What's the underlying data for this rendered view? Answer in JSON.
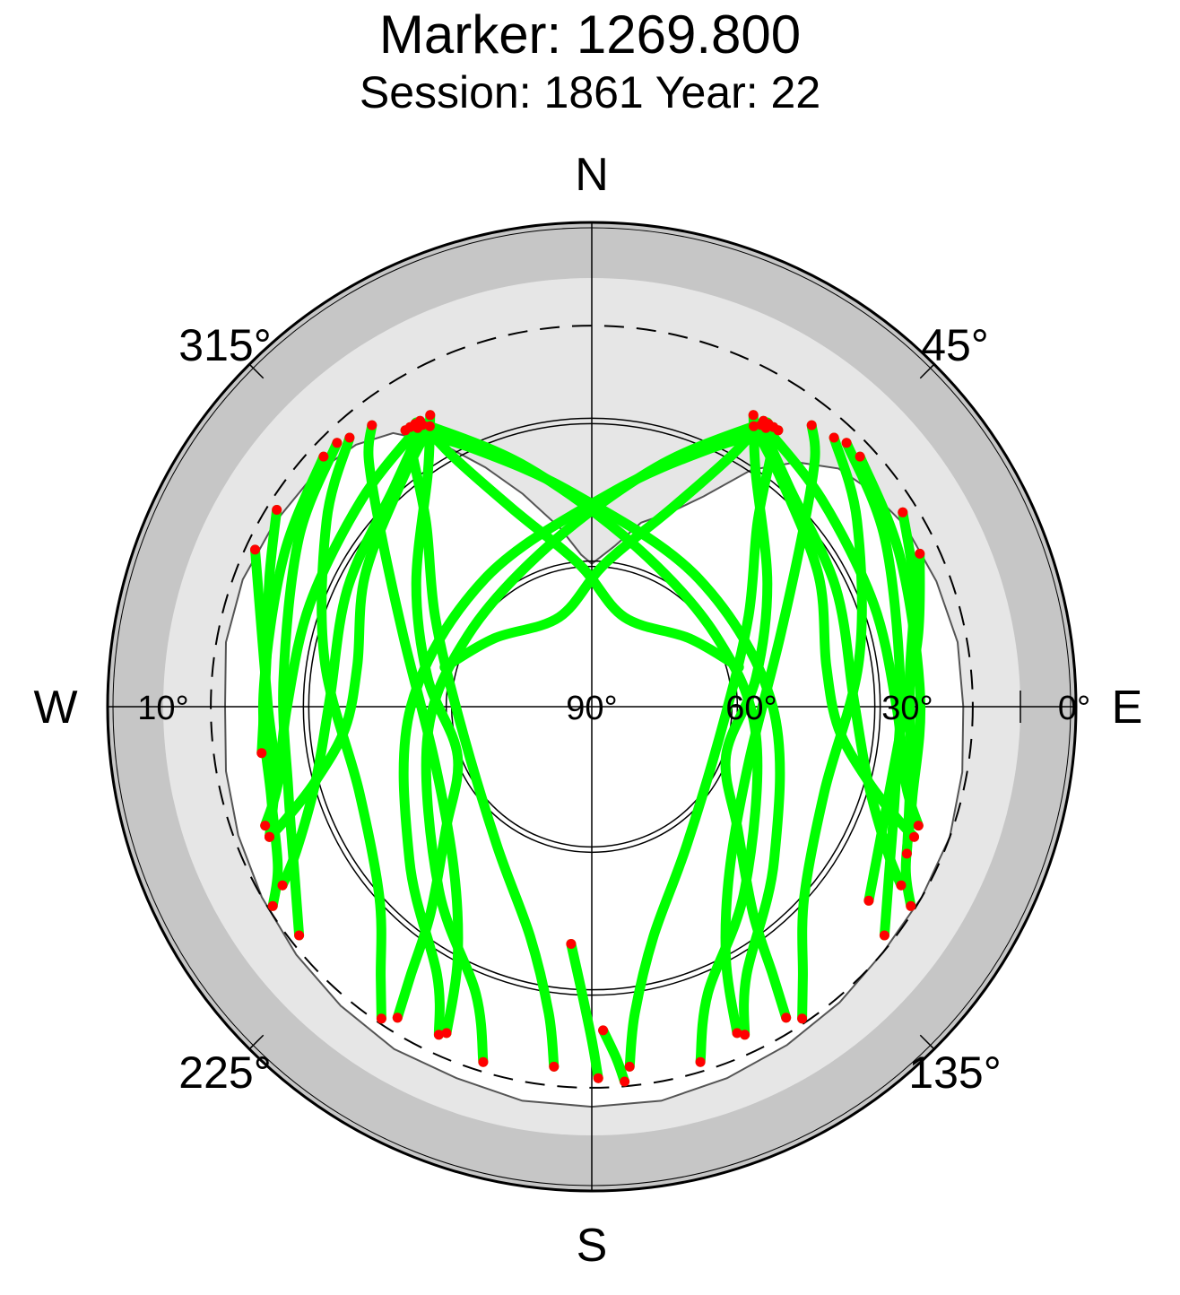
{
  "title": "Marker: 1269.800",
  "subtitle": "Session: 1861 Year: 22",
  "compass": {
    "north": "N",
    "south": "S",
    "east": "E",
    "west": "W"
  },
  "azimuth_labels": [
    {
      "az": 45,
      "text": "45°"
    },
    {
      "az": 135,
      "text": "135°"
    },
    {
      "az": 225,
      "text": "225°"
    },
    {
      "az": 315,
      "text": "315°"
    }
  ],
  "elevation_labels": [
    {
      "el": 0,
      "text": "0°"
    },
    {
      "el": 10,
      "text": "10°"
    },
    {
      "el": 30,
      "text": "30°"
    },
    {
      "el": 60,
      "text": "60°"
    },
    {
      "el": 90,
      "text": "90°"
    }
  ],
  "colors": {
    "background": "#ffffff",
    "outer_ring": "#c6c6c6",
    "masked_zone": "#e6e6e6",
    "grid": "#000000",
    "horizon_line": "#555555",
    "track": "#00ff00",
    "track_end": "#ff0000"
  },
  "chart_data": {
    "type": "scatter",
    "projection": "polar sky plot (azimuth clockwise from N, elevation 90° at center)",
    "title": "Marker: 1269.800",
    "subtitle": "Session: 1861 Year: 22",
    "elevation_range": [
      0,
      90
    ],
    "elevation_circles": [
      0,
      10,
      30,
      60
    ],
    "cutoff_elevation_dashed": 10,
    "grid": true,
    "series": [
      {
        "role": "satellite-tracks",
        "color": "#00ff00"
      },
      {
        "role": "track-endpoints",
        "color": "#ff0000"
      }
    ],
    "tracks": [
      [
        [
          329,
          20
        ],
        [
          331,
          30
        ],
        [
          338,
          45
        ],
        [
          355,
          60
        ],
        [
          20,
          70
        ],
        [
          55,
          65
        ],
        [
          75,
          58
        ]
      ],
      [
        [
          330,
          22
        ],
        [
          320,
          28
        ],
        [
          300,
          35
        ],
        [
          280,
          40
        ],
        [
          265,
          38
        ],
        [
          255,
          30
        ],
        [
          250,
          22
        ],
        [
          248,
          17
        ]
      ],
      [
        [
          331,
          20
        ],
        [
          325,
          30
        ],
        [
          305,
          45
        ],
        [
          280,
          55
        ],
        [
          250,
          60
        ],
        [
          230,
          50
        ],
        [
          218,
          35
        ],
        [
          214,
          22
        ],
        [
          212,
          13
        ]
      ],
      [
        [
          329,
          21
        ],
        [
          318,
          28
        ],
        [
          296,
          33
        ],
        [
          272,
          35
        ],
        [
          255,
          30
        ],
        [
          244,
          21
        ],
        [
          240,
          15
        ]
      ],
      [
        [
          328,
          21
        ],
        [
          312,
          25
        ],
        [
          290,
          27
        ],
        [
          270,
          26
        ],
        [
          256,
          22
        ],
        [
          250,
          17
        ]
      ],
      [
        [
          328,
          20
        ],
        [
          330,
          22
        ],
        [
          345,
          38
        ],
        [
          15,
          55
        ],
        [
          60,
          60
        ],
        [
          100,
          55
        ],
        [
          140,
          40
        ],
        [
          158,
          25
        ],
        [
          163,
          12
        ]
      ],
      [
        [
          327,
          20
        ],
        [
          325,
          24
        ],
        [
          318,
          38
        ],
        [
          300,
          52
        ],
        [
          265,
          62
        ],
        [
          215,
          55
        ],
        [
          195,
          40
        ],
        [
          188,
          25
        ],
        [
          186,
          14
        ]
      ],
      [
        [
          326,
          20
        ],
        [
          335,
          30
        ],
        [
          355,
          45
        ],
        [
          40,
          55
        ],
        [
          90,
          52
        ],
        [
          130,
          40
        ],
        [
          150,
          25
        ],
        [
          155,
          14
        ]
      ],
      [
        [
          322,
          15
        ],
        [
          318,
          20
        ],
        [
          310,
          32
        ],
        [
          290,
          48
        ],
        [
          250,
          55
        ],
        [
          220,
          45
        ],
        [
          208,
          30
        ],
        [
          204,
          15
        ]
      ],
      [
        [
          318,
          14
        ],
        [
          305,
          22
        ],
        [
          280,
          33
        ],
        [
          250,
          38
        ],
        [
          228,
          30
        ],
        [
          218,
          18
        ],
        [
          214,
          11
        ]
      ],
      [
        [
          316,
          13
        ],
        [
          300,
          19
        ],
        [
          275,
          25
        ],
        [
          255,
          24
        ],
        [
          240,
          18
        ],
        [
          232,
          12
        ]
      ],
      [
        [
          313,
          13
        ],
        [
          296,
          18
        ],
        [
          272,
          21
        ],
        [
          254,
          20
        ],
        [
          243,
          16
        ],
        [
          238,
          11
        ]
      ],
      [
        [
          31,
          20
        ],
        [
          29,
          30
        ],
        [
          22,
          45
        ],
        [
          5,
          60
        ],
        [
          340,
          70
        ],
        [
          305,
          65
        ],
        [
          285,
          58
        ]
      ],
      [
        [
          30,
          22
        ],
        [
          40,
          28
        ],
        [
          60,
          35
        ],
        [
          80,
          40
        ],
        [
          95,
          38
        ],
        [
          105,
          30
        ],
        [
          110,
          22
        ],
        [
          112,
          17
        ]
      ],
      [
        [
          29,
          20
        ],
        [
          35,
          30
        ],
        [
          55,
          45
        ],
        [
          80,
          55
        ],
        [
          110,
          60
        ],
        [
          130,
          50
        ],
        [
          142,
          35
        ],
        [
          146,
          22
        ],
        [
          148,
          13
        ]
      ],
      [
        [
          31,
          21
        ],
        [
          42,
          28
        ],
        [
          64,
          33
        ],
        [
          88,
          35
        ],
        [
          105,
          30
        ],
        [
          116,
          21
        ],
        [
          120,
          15
        ]
      ],
      [
        [
          32,
          21
        ],
        [
          48,
          25
        ],
        [
          70,
          27
        ],
        [
          90,
          26
        ],
        [
          104,
          22
        ],
        [
          110,
          17
        ]
      ],
      [
        [
          32,
          20
        ],
        [
          30,
          22
        ],
        [
          15,
          38
        ],
        [
          345,
          55
        ],
        [
          300,
          60
        ],
        [
          260,
          55
        ],
        [
          220,
          40
        ],
        [
          202,
          25
        ],
        [
          197,
          12
        ]
      ],
      [
        [
          33,
          20
        ],
        [
          35,
          24
        ],
        [
          42,
          38
        ],
        [
          60,
          52
        ],
        [
          95,
          62
        ],
        [
          145,
          55
        ],
        [
          165,
          40
        ],
        [
          172,
          25
        ],
        [
          174,
          14
        ]
      ],
      [
        [
          34,
          20
        ],
        [
          25,
          30
        ],
        [
          5,
          45
        ],
        [
          320,
          55
        ],
        [
          270,
          52
        ],
        [
          230,
          40
        ],
        [
          210,
          25
        ],
        [
          205,
          14
        ]
      ],
      [
        [
          38,
          15
        ],
        [
          42,
          20
        ],
        [
          50,
          32
        ],
        [
          70,
          48
        ],
        [
          110,
          55
        ],
        [
          140,
          45
        ],
        [
          152,
          30
        ],
        [
          156,
          15
        ]
      ],
      [
        [
          42,
          14
        ],
        [
          55,
          22
        ],
        [
          80,
          33
        ],
        [
          110,
          38
        ],
        [
          132,
          30
        ],
        [
          142,
          18
        ],
        [
          146,
          11
        ]
      ],
      [
        [
          44,
          13
        ],
        [
          60,
          19
        ],
        [
          85,
          25
        ],
        [
          105,
          24
        ],
        [
          120,
          18
        ],
        [
          128,
          12
        ]
      ],
      [
        [
          47,
          13
        ],
        [
          64,
          18
        ],
        [
          88,
          21
        ],
        [
          106,
          20
        ],
        [
          117,
          16
        ],
        [
          122,
          11
        ]
      ],
      [
        [
          58,
          13
        ],
        [
          70,
          18
        ],
        [
          85,
          23
        ],
        [
          100,
          22
        ],
        [
          115,
          17
        ]
      ],
      [
        [
          65,
          14
        ],
        [
          78,
          20
        ],
        [
          95,
          25
        ],
        [
          112,
          24
        ],
        [
          125,
          19
        ]
      ],
      [
        [
          302,
          12
        ],
        [
          292,
          17
        ],
        [
          278,
          21
        ],
        [
          262,
          20
        ]
      ],
      [
        [
          295,
          12
        ],
        [
          285,
          18
        ],
        [
          270,
          22
        ],
        [
          258,
          22
        ],
        [
          248,
          17
        ]
      ],
      [
        [
          185,
          40
        ],
        [
          182,
          30
        ],
        [
          180,
          20
        ],
        [
          179,
          12
        ]
      ],
      [
        [
          178,
          22
        ],
        [
          176,
          16
        ],
        [
          175,
          11
        ]
      ]
    ],
    "horizon_mask": [
      [
        0,
        60
      ],
      [
        8,
        56
      ],
      [
        15,
        50
      ],
      [
        22,
        46
      ],
      [
        28,
        40
      ],
      [
        34,
        30
      ],
      [
        40,
        23
      ],
      [
        46,
        18
      ],
      [
        52,
        16
      ],
      [
        60,
        14
      ],
      [
        70,
        13
      ],
      [
        80,
        12
      ],
      [
        90,
        12
      ],
      [
        100,
        11
      ],
      [
        110,
        10
      ],
      [
        120,
        10
      ],
      [
        130,
        10
      ],
      [
        140,
        9
      ],
      [
        150,
        8
      ],
      [
        160,
        7
      ],
      [
        170,
        6
      ],
      [
        180,
        6
      ],
      [
        190,
        6
      ],
      [
        200,
        7
      ],
      [
        210,
        7
      ],
      [
        220,
        8
      ],
      [
        230,
        9
      ],
      [
        240,
        10
      ],
      [
        250,
        11
      ],
      [
        260,
        12
      ],
      [
        270,
        13
      ],
      [
        280,
        12
      ],
      [
        290,
        12
      ],
      [
        300,
        13
      ],
      [
        310,
        14
      ],
      [
        318,
        16
      ],
      [
        324,
        19
      ],
      [
        330,
        26
      ],
      [
        336,
        35
      ],
      [
        342,
        43
      ],
      [
        350,
        52
      ],
      [
        356,
        58
      ],
      [
        360,
        60
      ]
    ]
  }
}
